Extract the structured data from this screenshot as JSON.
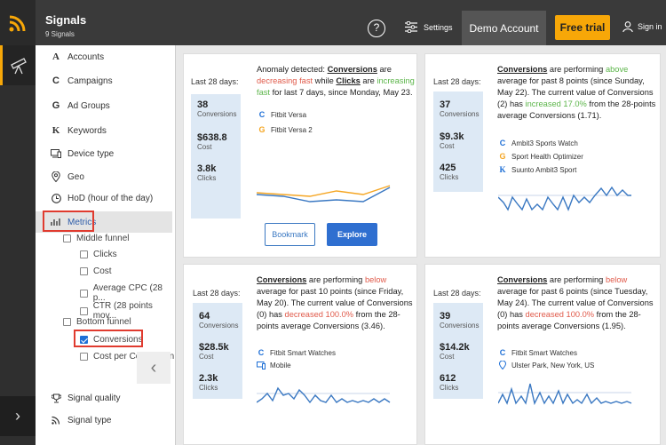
{
  "header": {
    "title": "Signals",
    "subtitle": "9 Signals",
    "help": "?",
    "settings": "Settings",
    "account": "Demo Account",
    "trial": "Free trial",
    "signin": "Sign in"
  },
  "sidebar": {
    "items": [
      {
        "label": "Accounts",
        "icon": "A"
      },
      {
        "label": "Campaigns",
        "icon": "C"
      },
      {
        "label": "Ad Groups",
        "icon": "G"
      },
      {
        "label": "Keywords",
        "icon": "K"
      },
      {
        "label": "Device type",
        "icon": "device-icon"
      },
      {
        "label": "Geo",
        "icon": "pin-icon"
      },
      {
        "label": "HoD (hour of the day)",
        "icon": "clock-icon"
      },
      {
        "label": "Metrics",
        "icon": "metrics-icon"
      }
    ],
    "groups": {
      "middle": "Middle funnel",
      "bottom": "Bottom funnel"
    },
    "metrics": [
      "Clicks",
      "Cost",
      "Average CPC (28 p...",
      "CTR (28 points mov...",
      "Conversions",
      "Cost per Conversion"
    ],
    "footer": [
      "Signal quality",
      "Signal type"
    ]
  },
  "cards": [
    {
      "period": "Last 28 days:",
      "stats": [
        {
          "v": "38",
          "l": "Conversions"
        },
        {
          "v": "$638.8",
          "l": "Cost"
        },
        {
          "v": "3.8k",
          "l": "Clicks"
        }
      ],
      "t1": "Anomaly detected: ",
      "t2": "Conversions",
      "t3": " are ",
      "t4": "decreasing fast",
      "t5": " while ",
      "t6": "Clicks",
      "t7": " are ",
      "t8": "increasing fast",
      "t9": " for last 7 days, since Monday, May 23.",
      "legend": [
        {
          "icon": "C",
          "label": "Fitbit Versa"
        },
        {
          "icon": "G",
          "label": "Fitbit Versa 2"
        }
      ],
      "bookmark": "Bookmark",
      "explore": "Explore"
    },
    {
      "period": "Last 28 days:",
      "stats": [
        {
          "v": "37",
          "l": "Conversions"
        },
        {
          "v": "$9.3k",
          "l": "Cost"
        },
        {
          "v": "425",
          "l": "Clicks"
        }
      ],
      "t1": "Conversions",
      "t2": " are performing ",
      "t3": "above",
      "t4": " average for past 8 points (since Sunday, May 22). The current value of Conversions (2) has ",
      "t5": "increased 17.0%",
      "t6": " from the 28-points average Conversions (1.71).",
      "legend": [
        {
          "icon": "C",
          "label": "Ambit3 Sports Watch"
        },
        {
          "icon": "G",
          "label": "Sport Health Optimizer"
        },
        {
          "icon": "K",
          "label": "Suunto Ambit3 Sport"
        }
      ]
    },
    {
      "period": "Last 28 days:",
      "stats": [
        {
          "v": "64",
          "l": "Conversions"
        },
        {
          "v": "$28.5k",
          "l": "Cost"
        },
        {
          "v": "2.3k",
          "l": "Clicks"
        }
      ],
      "t1": "Conversions",
      "t2": " are performing ",
      "t3": "below",
      "t4": " average for past 10 points (since Friday, May 20). The current value of Conversions (0) has ",
      "t5": "decreased 100.0%",
      "t6": " from the 28-points average Conversions (3.46).",
      "legend": [
        {
          "icon": "C",
          "label": "Fitbit Smart Watches"
        },
        {
          "icon": "device",
          "label": "Mobile"
        }
      ]
    },
    {
      "period": "Last 28 days:",
      "stats": [
        {
          "v": "39",
          "l": "Conversions"
        },
        {
          "v": "$14.2k",
          "l": "Cost"
        },
        {
          "v": "612",
          "l": "Clicks"
        }
      ],
      "t1": "Conversions",
      "t2": " are performing ",
      "t3": "below",
      "t4": " average for past 6 points (since Tuesday, May 24). The current value of Conversions (0) has ",
      "t5": "decreased 100.0%",
      "t6": " from the 28-points average Conversions (1.95).",
      "legend": [
        {
          "icon": "C",
          "label": "Fitbit Smart Watches"
        },
        {
          "icon": "pin",
          "label": "Ulster Park, New York, US"
        }
      ]
    }
  ],
  "colors": {
    "accent": "#f7a708",
    "blue": "#1e6fd6",
    "line": "#3a78c2",
    "orange": "#f5a623",
    "red": "#e05a4a",
    "green": "#5cb54a"
  }
}
